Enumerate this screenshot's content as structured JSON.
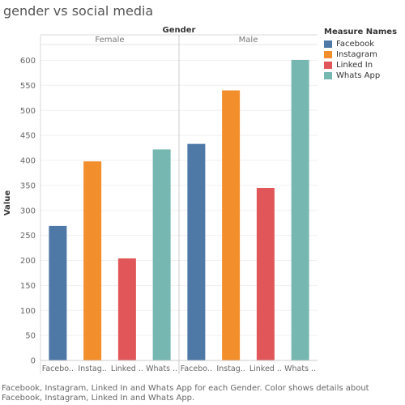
{
  "chart_data": {
    "type": "bar",
    "title": "gender vs social media",
    "column_header": "Gender",
    "panels": [
      "Female",
      "Male"
    ],
    "categories": [
      "Facebook",
      "Instagram",
      "Linked In",
      "Whats App"
    ],
    "category_tick_labels": [
      "Facebo..",
      "Instag..",
      "Linked ..",
      "Whats .."
    ],
    "series": [
      {
        "name": "Female",
        "values": [
          269,
          398,
          204,
          422
        ]
      },
      {
        "name": "Male",
        "values": [
          433,
          540,
          345,
          601
        ]
      }
    ],
    "ylabel": "Value",
    "ylim": [
      0,
      630
    ],
    "yticks": [
      0,
      50,
      100,
      150,
      200,
      250,
      300,
      350,
      400,
      450,
      500,
      550,
      600
    ],
    "colors": {
      "Facebook": "#4e79a7",
      "Instagram": "#f28e2b",
      "Linked In": "#e15759",
      "Whats App": "#76b7b2"
    },
    "legend": {
      "title": "Measure Names",
      "position": "top-right",
      "items": [
        "Facebook",
        "Instagram",
        "Linked In",
        "Whats App"
      ]
    },
    "caption": "Facebook, Instagram, Linked In and Whats App for each Gender.  Color shows details about Facebook, Instagram, Linked In and Whats App."
  }
}
